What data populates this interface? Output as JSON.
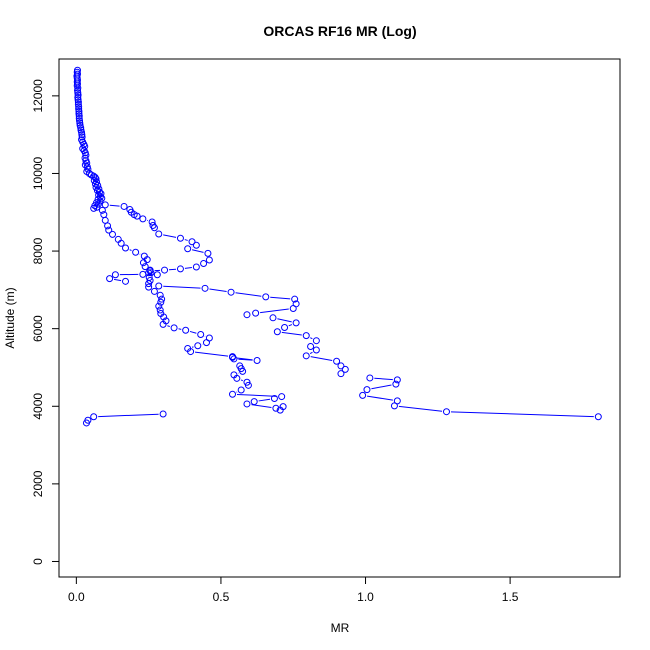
{
  "chart_data": {
    "type": "line",
    "title": "ORCAS RF16 MR (Log)",
    "xlabel": "MR",
    "ylabel": "Altitude (m)",
    "xlim": [
      -0.06,
      1.88
    ],
    "ylim": [
      -400,
      12950
    ],
    "x_ticks": [
      0.0,
      0.5,
      1.0,
      1.5
    ],
    "x_tick_labels": [
      "0.0",
      "0.5",
      "1.0",
      "1.5"
    ],
    "y_ticks": [
      0,
      2000,
      4000,
      6000,
      8000,
      10000,
      12000
    ],
    "y_tick_labels": [
      "0",
      "2000",
      "4000",
      "6000",
      "8000",
      "10000",
      "12000"
    ],
    "grid": false,
    "legend": "none",
    "series": [
      {
        "color": "#0000ff",
        "marker": "open-circle",
        "style": "line-with-gaps",
        "points": [
          [
            0.004,
            12660
          ],
          [
            0.003,
            12610
          ],
          [
            0.004,
            12560
          ],
          [
            0.002,
            12510
          ],
          [
            0.003,
            12460
          ],
          [
            0.004,
            12410
          ],
          [
            0.003,
            12360
          ],
          [
            0.004,
            12310
          ],
          [
            0.003,
            12260
          ],
          [
            0.005,
            12200
          ],
          [
            0.004,
            12140
          ],
          [
            0.005,
            12080
          ],
          [
            0.006,
            12020
          ],
          [
            0.005,
            11960
          ],
          [
            0.006,
            11900
          ],
          [
            0.007,
            11840
          ],
          [
            0.007,
            11780
          ],
          [
            0.008,
            11720
          ],
          [
            0.008,
            11660
          ],
          [
            0.009,
            11600
          ],
          [
            0.009,
            11540
          ],
          [
            0.01,
            11480
          ],
          [
            0.01,
            11420
          ],
          [
            0.011,
            11360
          ],
          [
            0.012,
            11300
          ],
          [
            0.013,
            11240
          ],
          [
            0.015,
            11180
          ],
          [
            0.016,
            11120
          ],
          [
            0.018,
            11060
          ],
          [
            0.019,
            11000
          ],
          [
            0.02,
            10940
          ],
          [
            0.018,
            10870
          ],
          [
            0.022,
            10810
          ],
          [
            0.026,
            10750
          ],
          [
            0.029,
            10700
          ],
          [
            0.022,
            10640
          ],
          [
            0.027,
            10590
          ],
          [
            0.031,
            10530
          ],
          [
            0.033,
            10470
          ],
          [
            0.03,
            10400
          ],
          [
            0.033,
            10330
          ],
          [
            0.036,
            10270
          ],
          [
            0.031,
            10220
          ],
          [
            0.038,
            10170
          ],
          [
            0.04,
            10110
          ],
          [
            0.036,
            10050
          ],
          [
            0.045,
            10000
          ],
          [
            0.052,
            9960
          ],
          [
            0.06,
            9930
          ],
          [
            0.065,
            9900
          ],
          [
            0.068,
            9860
          ],
          [
            0.062,
            9820
          ],
          [
            0.07,
            9780
          ],
          [
            0.066,
            9730
          ],
          [
            0.074,
            9690
          ],
          [
            0.068,
            9640
          ],
          [
            0.078,
            9600
          ],
          [
            0.073,
            9560
          ],
          [
            0.08,
            9520
          ],
          [
            0.085,
            9480
          ],
          [
            0.077,
            9440
          ],
          [
            0.083,
            9400
          ],
          [
            0.088,
            9360
          ],
          [
            0.075,
            9330
          ],
          [
            0.082,
            9290
          ],
          [
            0.07,
            9250
          ],
          [
            0.076,
            9210
          ],
          [
            0.064,
            9170
          ],
          [
            0.071,
            9130
          ],
          [
            0.06,
            9100
          ],
          null,
          [
            0.1,
            9190
          ],
          [
            0.165,
            9150
          ],
          [
            0.185,
            9070
          ],
          [
            0.19,
            9000
          ],
          [
            0.2,
            8940
          ],
          [
            0.21,
            8900
          ],
          [
            0.23,
            8830
          ],
          [
            0.262,
            8750
          ],
          [
            0.265,
            8660
          ],
          [
            0.27,
            8600
          ],
          [
            0.285,
            8440
          ],
          [
            0.36,
            8330
          ],
          [
            0.4,
            8240
          ],
          [
            0.415,
            8150
          ],
          [
            0.385,
            8060
          ],
          [
            0.455,
            7940
          ],
          [
            0.46,
            7770
          ],
          [
            0.44,
            7680
          ],
          [
            0.415,
            7590
          ],
          [
            0.36,
            7540
          ],
          [
            0.305,
            7510
          ],
          [
            0.255,
            7490
          ],
          [
            0.258,
            7440
          ],
          null,
          [
            0.28,
            7390
          ],
          [
            0.23,
            7400
          ],
          [
            0.135,
            7390
          ],
          null,
          [
            0.115,
            7290
          ],
          [
            0.17,
            7220
          ],
          null,
          [
            0.285,
            7100
          ],
          [
            0.445,
            7040
          ],
          [
            0.535,
            6940
          ],
          [
            0.655,
            6820
          ],
          [
            0.755,
            6760
          ],
          [
            0.76,
            6640
          ],
          [
            0.75,
            6520
          ],
          [
            0.62,
            6400
          ],
          [
            0.59,
            6360
          ],
          null,
          [
            0.68,
            6280
          ],
          [
            0.76,
            6150
          ],
          [
            0.72,
            6030
          ],
          [
            0.695,
            5920
          ],
          [
            0.795,
            5820
          ],
          [
            0.83,
            5690
          ],
          [
            0.81,
            5540
          ],
          [
            0.83,
            5450
          ],
          [
            0.795,
            5300
          ],
          [
            0.9,
            5160
          ],
          [
            0.915,
            5040
          ],
          [
            0.93,
            4950
          ],
          [
            0.915,
            4840
          ],
          null,
          [
            1.015,
            4730
          ],
          [
            1.11,
            4680
          ],
          [
            1.105,
            4570
          ],
          [
            1.005,
            4430
          ],
          [
            0.99,
            4280
          ],
          [
            1.11,
            4140
          ],
          [
            1.1,
            4010
          ],
          [
            1.28,
            3860
          ],
          [
            1.805,
            3730
          ]
        ]
      },
      {
        "color": "#0000ff",
        "marker": "open-circle",
        "style": "line-with-gaps",
        "points": [
          [
            0.09,
            9050
          ],
          [
            0.095,
            8940
          ],
          [
            0.1,
            8790
          ],
          [
            0.108,
            8650
          ],
          [
            0.112,
            8540
          ],
          [
            0.125,
            8430
          ],
          [
            0.145,
            8300
          ],
          [
            0.155,
            8200
          ],
          [
            0.17,
            8080
          ],
          [
            0.205,
            7970
          ],
          [
            0.235,
            7870
          ],
          [
            0.245,
            7780
          ],
          [
            0.232,
            7700
          ],
          [
            0.238,
            7600
          ],
          [
            0.255,
            7510
          ],
          [
            0.25,
            7440
          ],
          [
            0.252,
            7320
          ],
          [
            0.255,
            7240
          ],
          [
            0.25,
            7160
          ],
          [
            0.25,
            7070
          ],
          [
            0.27,
            6960
          ],
          [
            0.29,
            6860
          ],
          [
            0.295,
            6760
          ],
          [
            0.292,
            6680
          ],
          [
            0.285,
            6580
          ],
          [
            0.29,
            6480
          ],
          [
            0.292,
            6390
          ],
          [
            0.302,
            6300
          ],
          [
            0.31,
            6200
          ],
          [
            0.3,
            6110
          ],
          [
            0.338,
            6020
          ],
          [
            0.378,
            5960
          ],
          [
            0.43,
            5850
          ],
          [
            0.46,
            5760
          ],
          [
            0.45,
            5640
          ],
          [
            0.42,
            5560
          ],
          [
            0.385,
            5490
          ],
          [
            0.395,
            5410
          ],
          [
            0.54,
            5280
          ],
          [
            0.545,
            5220
          ],
          [
            0.625,
            5180
          ],
          [
            0.54,
            5260
          ],
          null,
          [
            0.565,
            5040
          ],
          [
            0.57,
            4970
          ],
          [
            0.575,
            4900
          ],
          [
            0.545,
            4810
          ],
          [
            0.555,
            4720
          ],
          [
            0.59,
            4620
          ],
          [
            0.595,
            4540
          ],
          [
            0.57,
            4420
          ],
          [
            0.54,
            4310
          ],
          [
            0.71,
            4250
          ],
          [
            0.685,
            4200
          ],
          [
            0.615,
            4120
          ],
          [
            0.59,
            4060
          ],
          [
            0.69,
            3950
          ],
          [
            0.705,
            3900
          ],
          [
            0.715,
            3990
          ],
          null,
          [
            0.3,
            3800
          ],
          [
            0.06,
            3730
          ],
          [
            0.04,
            3640
          ],
          [
            0.035,
            3570
          ]
        ]
      }
    ]
  }
}
